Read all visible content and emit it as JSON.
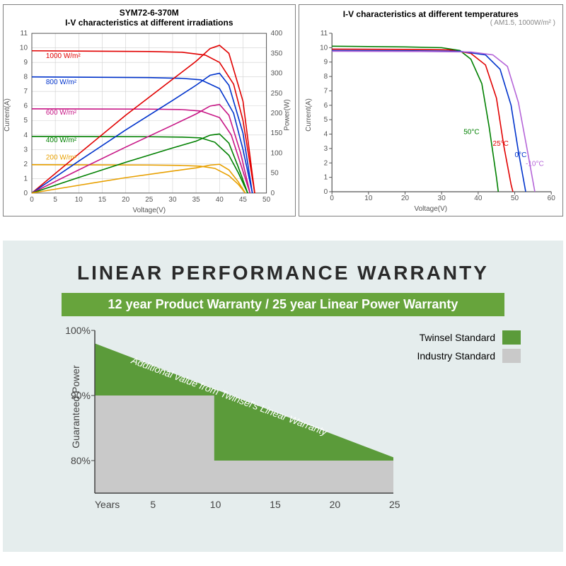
{
  "top_left_chart": {
    "type": "line",
    "model": "SYM72-6-370M",
    "title": "I-V characteristics at different irradiations",
    "x_label": "Voltage(V)",
    "y_label": "Current(A)",
    "y2_label": "Power(W)",
    "xlim": [
      0,
      50
    ],
    "ylim": [
      0,
      11
    ],
    "y2lim": [
      0,
      400
    ],
    "x_ticks": [
      0,
      5,
      10,
      15,
      20,
      25,
      30,
      35,
      40,
      45,
      50
    ],
    "y_ticks": [
      0,
      1,
      2,
      3,
      4,
      5,
      6,
      7,
      8,
      9,
      10,
      11
    ],
    "y2_ticks": [
      0,
      50,
      100,
      150,
      200,
      250,
      300,
      350,
      400
    ],
    "label_fontsize": 10,
    "tick_fontsize": 10,
    "title_fontsize": 12,
    "grid_color": "#d0d0d0",
    "background_color": "#ffffff",
    "axis_color": "#555555",
    "line_width": 1.6,
    "iv_series": [
      {
        "name": "1000 W/m²",
        "color": "#e10000",
        "points": [
          [
            0,
            9.8
          ],
          [
            25,
            9.75
          ],
          [
            32,
            9.7
          ],
          [
            37,
            9.5
          ],
          [
            40,
            9.0
          ],
          [
            43,
            7.5
          ],
          [
            45,
            5.0
          ],
          [
            46.5,
            2.0
          ],
          [
            47.5,
            0
          ]
        ]
      },
      {
        "name": "800 W/m²",
        "color": "#0033cc",
        "points": [
          [
            0,
            8.0
          ],
          [
            25,
            7.95
          ],
          [
            32,
            7.9
          ],
          [
            36,
            7.8
          ],
          [
            40,
            7.2
          ],
          [
            43,
            5.5
          ],
          [
            45,
            3.0
          ],
          [
            47,
            0
          ]
        ]
      },
      {
        "name": "600 W/m²",
        "color": "#c71585",
        "points": [
          [
            0,
            5.8
          ],
          [
            25,
            5.78
          ],
          [
            32,
            5.75
          ],
          [
            36,
            5.65
          ],
          [
            40,
            5.2
          ],
          [
            42.5,
            4.0
          ],
          [
            44.5,
            2.0
          ],
          [
            46.5,
            0
          ]
        ]
      },
      {
        "name": "400 W/m²",
        "color": "#008000",
        "points": [
          [
            0,
            3.9
          ],
          [
            25,
            3.88
          ],
          [
            32,
            3.85
          ],
          [
            36,
            3.8
          ],
          [
            39,
            3.5
          ],
          [
            42,
            2.6
          ],
          [
            44,
            1.4
          ],
          [
            46,
            0
          ]
        ]
      },
      {
        "name": "200 W/m²",
        "color": "#e8a000",
        "points": [
          [
            0,
            1.95
          ],
          [
            25,
            1.93
          ],
          [
            32,
            1.9
          ],
          [
            36,
            1.85
          ],
          [
            39,
            1.7
          ],
          [
            42,
            1.2
          ],
          [
            44,
            0.6
          ],
          [
            45.5,
            0
          ]
        ]
      }
    ],
    "pv_series": [
      {
        "color": "#e10000",
        "points": [
          [
            0,
            0
          ],
          [
            10,
            98
          ],
          [
            20,
            195
          ],
          [
            30,
            285
          ],
          [
            35,
            330
          ],
          [
            38,
            362
          ],
          [
            40,
            370
          ],
          [
            42,
            350
          ],
          [
            45,
            230
          ],
          [
            47.5,
            0
          ]
        ]
      },
      {
        "color": "#0033cc",
        "points": [
          [
            0,
            0
          ],
          [
            10,
            80
          ],
          [
            20,
            158
          ],
          [
            30,
            232
          ],
          [
            35,
            270
          ],
          [
            38,
            295
          ],
          [
            40,
            300
          ],
          [
            42,
            270
          ],
          [
            45,
            150
          ],
          [
            47,
            0
          ]
        ]
      },
      {
        "color": "#c71585",
        "points": [
          [
            0,
            0
          ],
          [
            10,
            58
          ],
          [
            20,
            115
          ],
          [
            30,
            170
          ],
          [
            35,
            198
          ],
          [
            38,
            218
          ],
          [
            40,
            222
          ],
          [
            42,
            195
          ],
          [
            44.5,
            100
          ],
          [
            46.5,
            0
          ]
        ]
      },
      {
        "color": "#008000",
        "points": [
          [
            0,
            0
          ],
          [
            10,
            39
          ],
          [
            20,
            77
          ],
          [
            30,
            113
          ],
          [
            35,
            130
          ],
          [
            38,
            145
          ],
          [
            40,
            148
          ],
          [
            42,
            125
          ],
          [
            44,
            65
          ],
          [
            46,
            0
          ]
        ]
      },
      {
        "color": "#e8a000",
        "points": [
          [
            0,
            0
          ],
          [
            10,
            19.5
          ],
          [
            20,
            38.5
          ],
          [
            30,
            55
          ],
          [
            35,
            63
          ],
          [
            38,
            70
          ],
          [
            40,
            72
          ],
          [
            42,
            58
          ],
          [
            44,
            28
          ],
          [
            45.5,
            0
          ]
        ]
      }
    ],
    "series_label_positions": [
      {
        "text": "1000 W/m²",
        "x": 3,
        "y": 9.3,
        "color": "#e10000"
      },
      {
        "text": "800 W/m²",
        "x": 3,
        "y": 7.5,
        "color": "#0033cc"
      },
      {
        "text": "600 W/m²",
        "x": 3,
        "y": 5.4,
        "color": "#c71585"
      },
      {
        "text": "400 W/m²",
        "x": 3,
        "y": 3.5,
        "color": "#008000"
      },
      {
        "text": "200 W/m²",
        "x": 3,
        "y": 2.3,
        "color": "#e8a000"
      }
    ]
  },
  "top_right_chart": {
    "type": "line",
    "title": "I-V characteristics at different temperatures",
    "condition": "( AM1.5, 1000W/m² )",
    "x_label": "Voltage(V)",
    "y_label": "Current(A)",
    "xlim": [
      0,
      60
    ],
    "ylim": [
      0,
      11
    ],
    "x_ticks": [
      0,
      10,
      20,
      30,
      40,
      50,
      60
    ],
    "y_ticks": [
      0,
      1,
      2,
      3,
      4,
      5,
      6,
      7,
      8,
      9,
      10,
      11
    ],
    "label_fontsize": 10,
    "tick_fontsize": 10,
    "title_fontsize": 12,
    "grid_color": "#ffffff",
    "background_color": "#ffffff",
    "axis_color": "#555555",
    "line_width": 1.6,
    "series": [
      {
        "name": "50°C",
        "color": "#008000",
        "points": [
          [
            0,
            10.1
          ],
          [
            20,
            10.05
          ],
          [
            30,
            10.0
          ],
          [
            35,
            9.8
          ],
          [
            38,
            9.2
          ],
          [
            41,
            7.5
          ],
          [
            43,
            4.5
          ],
          [
            45,
            1.0
          ],
          [
            45.5,
            0
          ]
        ]
      },
      {
        "name": "25°C",
        "color": "#e10000",
        "points": [
          [
            0,
            9.9
          ],
          [
            20,
            9.88
          ],
          [
            32,
            9.85
          ],
          [
            38,
            9.6
          ],
          [
            42,
            8.8
          ],
          [
            45,
            6.5
          ],
          [
            47,
            3.2
          ],
          [
            49,
            0.5
          ],
          [
            49.5,
            0
          ]
        ]
      },
      {
        "name": "0°C",
        "color": "#0033cc",
        "points": [
          [
            0,
            9.8
          ],
          [
            22,
            9.78
          ],
          [
            35,
            9.75
          ],
          [
            42,
            9.5
          ],
          [
            46,
            8.5
          ],
          [
            49,
            6.0
          ],
          [
            51,
            2.8
          ],
          [
            53,
            0
          ]
        ]
      },
      {
        "name": "-10°C",
        "color": "#b565d8",
        "points": [
          [
            0,
            9.75
          ],
          [
            24,
            9.73
          ],
          [
            38,
            9.7
          ],
          [
            44,
            9.5
          ],
          [
            48,
            8.7
          ],
          [
            51,
            6.2
          ],
          [
            53.5,
            2.8
          ],
          [
            55.5,
            0
          ]
        ]
      }
    ],
    "series_label_positions": [
      {
        "text": "50°C",
        "x": 36,
        "y": 4.0,
        "color": "#008000"
      },
      {
        "text": "25°C",
        "x": 44,
        "y": 3.2,
        "color": "#e10000"
      },
      {
        "text": "0°C",
        "x": 50,
        "y": 2.4,
        "color": "#0033cc"
      },
      {
        "text": "-10°C",
        "x": 53,
        "y": 1.8,
        "color": "#b565d8"
      }
    ]
  },
  "warranty": {
    "title": "LINEAR PERFORMANCE WARRANTY",
    "subheading": "12 year Product Warranty / 25 year Linear Power Warranty",
    "type": "area",
    "y_label": "Guaranteed Power",
    "x_label_first": "Years",
    "xlim": [
      0,
      25
    ],
    "ylim": [
      75,
      100
    ],
    "x_ticks": [
      5,
      10,
      15,
      20,
      25
    ],
    "y_ticks": [
      80,
      90,
      100
    ],
    "y_tick_labels": [
      "80%",
      "90%",
      "100%"
    ],
    "twinsel_color": "#5b9b3a",
    "industry_color": "#c9c9c9",
    "background_color": "#e5eded",
    "diag_text": "Additional value from Twinsel's Linear Warranty",
    "legend": [
      {
        "label": "Twinsel Standard",
        "color": "#5b9b3a"
      },
      {
        "label": "Industry Standard",
        "color": "#c9c9c9"
      }
    ],
    "twinsel_poly": [
      [
        0,
        98
      ],
      [
        25,
        80.5
      ],
      [
        25,
        75
      ],
      [
        0,
        75
      ]
    ],
    "industry_poly": [
      [
        0,
        90
      ],
      [
        10,
        90
      ],
      [
        10,
        80
      ],
      [
        25,
        80
      ],
      [
        25,
        75
      ],
      [
        0,
        75
      ]
    ]
  }
}
